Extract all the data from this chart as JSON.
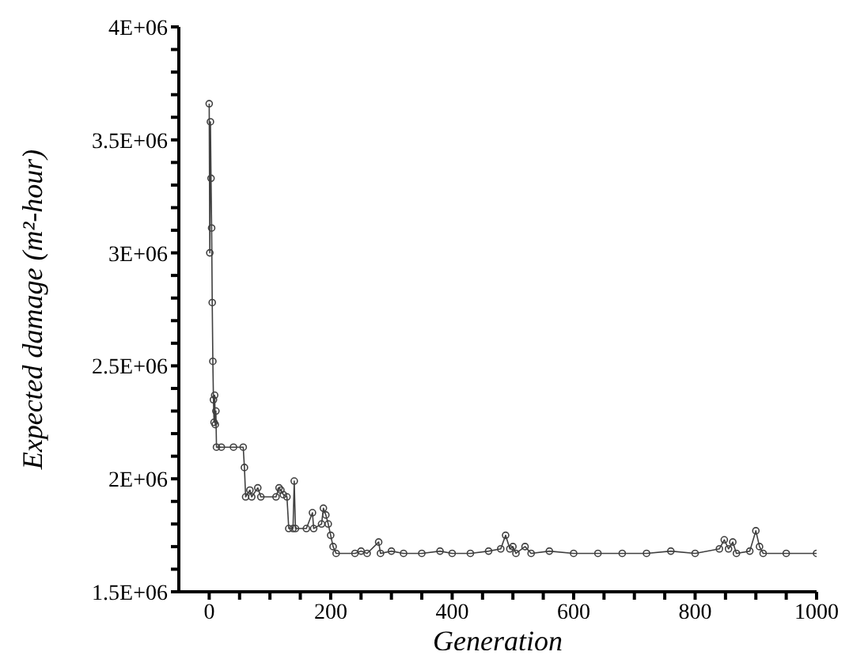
{
  "chart_data": {
    "type": "line",
    "xlabel": "Generation",
    "ylabel": "Expected damage (m²-hour)",
    "x": [
      0,
      1,
      2,
      3,
      4,
      5,
      6,
      7,
      8,
      9,
      10,
      11,
      12,
      20,
      40,
      56,
      58,
      60,
      67,
      70,
      80,
      85,
      110,
      115,
      118,
      122,
      128,
      131,
      138,
      140,
      142,
      160,
      170,
      172,
      185,
      188,
      192,
      196,
      200,
      204,
      209,
      240,
      250,
      260,
      279,
      282,
      300,
      320,
      350,
      380,
      400,
      430,
      460,
      480,
      488,
      495,
      500,
      505,
      520,
      530,
      560,
      600,
      640,
      680,
      720,
      760,
      800,
      840,
      848,
      855,
      862,
      868,
      890,
      900,
      906,
      912,
      950,
      1000
    ],
    "series": [
      {
        "color": "#404040",
        "values": [
          3660000,
          3000000,
          3580000,
          3330000,
          3110000,
          2780000,
          2520000,
          2350000,
          2250000,
          2370000,
          2240000,
          2300000,
          2140000,
          2140000,
          2140000,
          2140000,
          2050000,
          1920000,
          1950000,
          1920000,
          1960000,
          1920000,
          1920000,
          1960000,
          1950000,
          1930000,
          1920000,
          1780000,
          1780000,
          1990000,
          1780000,
          1780000,
          1850000,
          1780000,
          1800000,
          1870000,
          1840000,
          1800000,
          1750000,
          1700000,
          1670000,
          1670000,
          1680000,
          1670000,
          1720000,
          1670000,
          1680000,
          1670000,
          1670000,
          1680000,
          1670000,
          1670000,
          1680000,
          1690000,
          1750000,
          1690000,
          1700000,
          1670000,
          1700000,
          1670000,
          1680000,
          1670000,
          1670000,
          1670000,
          1670000,
          1680000,
          1670000,
          1690000,
          1730000,
          1690000,
          1720000,
          1670000,
          1680000,
          1770000,
          1700000,
          1670000,
          1670000,
          1670000
        ]
      }
    ],
    "xlim": [
      -50,
      1000
    ],
    "xticks": [
      0,
      {
        "value": 50,
        "label": null
      },
      {
        "value": 100,
        "label": null
      },
      {
        "value": 150,
        "label": null
      },
      200,
      {
        "value": 250,
        "label": null
      },
      {
        "value": 300,
        "label": null
      },
      {
        "value": 350,
        "label": null
      },
      400,
      {
        "value": 450,
        "label": null
      },
      {
        "value": 500,
        "label": null
      },
      {
        "value": 550,
        "label": null
      },
      600,
      {
        "value": 650,
        "label": null
      },
      {
        "value": 700,
        "label": null
      },
      {
        "value": 750,
        "label": null
      },
      800,
      {
        "value": 850,
        "label": null
      },
      {
        "value": 900,
        "label": null
      },
      {
        "value": 950,
        "label": null
      },
      1000
    ],
    "ylim": [
      1500000,
      4000000
    ],
    "yticks": [
      {
        "value": 1500000,
        "label": "1.5E+06"
      },
      {
        "value": 1600000,
        "label": null
      },
      {
        "value": 1700000,
        "label": null
      },
      {
        "value": 1800000,
        "label": null
      },
      {
        "value": 1900000,
        "label": null
      },
      {
        "value": 2000000,
        "label": "2E+06"
      },
      {
        "value": 2100000,
        "label": null
      },
      {
        "value": 2200000,
        "label": null
      },
      {
        "value": 2300000,
        "label": null
      },
      {
        "value": 2400000,
        "label": null
      },
      {
        "value": 2500000,
        "label": "2.5E+06"
      },
      {
        "value": 2600000,
        "label": null
      },
      {
        "value": 2700000,
        "label": null
      },
      {
        "value": 2800000,
        "label": null
      },
      {
        "value": 2900000,
        "label": null
      },
      {
        "value": 3000000,
        "label": "3E+06"
      },
      {
        "value": 3100000,
        "label": null
      },
      {
        "value": 3200000,
        "label": null
      },
      {
        "value": 3300000,
        "label": null
      },
      {
        "value": 3400000,
        "label": null
      },
      {
        "value": 3500000,
        "label": "3.5E+06"
      },
      {
        "value": 3600000,
        "label": null
      },
      {
        "value": 3700000,
        "label": null
      },
      {
        "value": 3800000,
        "label": null
      },
      {
        "value": 3900000,
        "label": null
      },
      {
        "value": 4000000,
        "label": "4E+06"
      }
    ],
    "grid": false,
    "legend": false,
    "marker": "circle",
    "line_style": "solid"
  }
}
